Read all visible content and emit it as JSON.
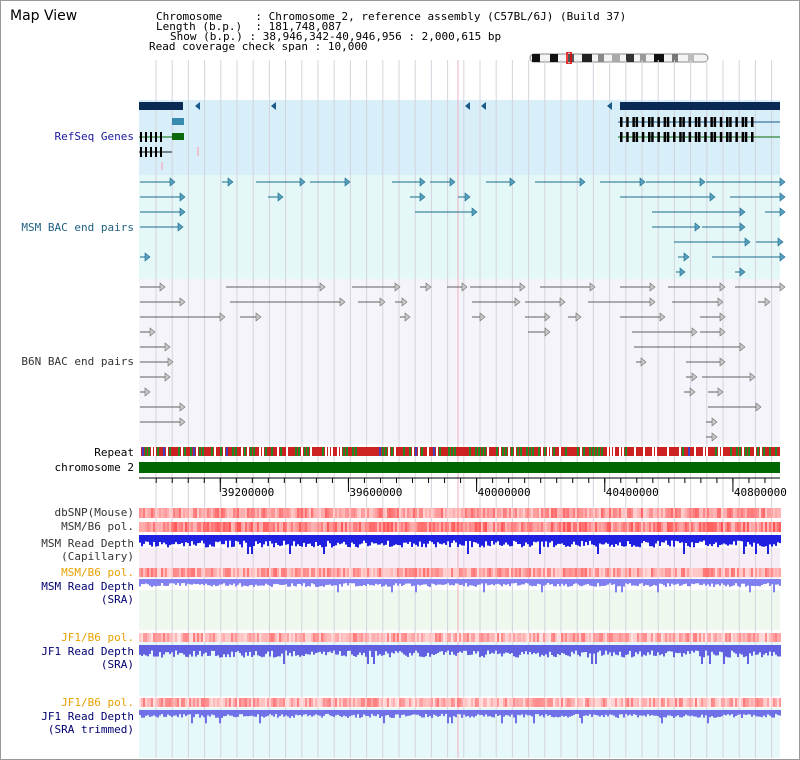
{
  "window": {
    "title": "Map View"
  },
  "info": {
    "chromosome_key": "Chromosome",
    "chromosome_value": ": Chromosome 2, reference assembly (C57BL/6J) (Build 37)",
    "length_key": "Length (b.p.)",
    "length_value": ": 181,748,087",
    "show_key": "Show (b.p.)",
    "show_value": ": 38,946,342-40,946,956 : 2,000,615 bp",
    "coverage_key": "Read coverage check span",
    "coverage_value": ": 10,000"
  },
  "tracks": {
    "refseq": "RefSeq Genes",
    "msm_bac": "MSM BAC end pairs",
    "b6n_bac": "B6N BAC end pairs",
    "repeat": "Repeat",
    "chromosome": "chromosome 2",
    "dbsnp": "dbSNP(Mouse)",
    "msm_b6_pol_1": "MSM/B6 pol.",
    "msm_depth_cap_1": "MSM Read Depth",
    "msm_depth_cap_2": "(Capillary)",
    "msm_b6_pol_2": "MSM/B6 pol.",
    "msm_depth_sra_1": "MSM Read Depth",
    "msm_depth_sra_2": "(SRA)",
    "jf1_pol_1": "JF1/B6 pol.",
    "jf1_depth_1a": "JF1 Read Depth",
    "jf1_depth_1b": "(SRA)",
    "jf1_pol_2": "JF1/B6 pol.",
    "jf1_depth_2a": "JF1 Read Depth",
    "jf1_depth_2b": "(SRA trimmed)"
  },
  "axis": {
    "start_bp": 38946342,
    "end_bp": 40946956,
    "ticks": [
      {
        "bp": 39200000,
        "label": "39200000"
      },
      {
        "bp": 39600000,
        "label": "39600000"
      },
      {
        "bp": 40000000,
        "label": "40000000"
      },
      {
        "bp": 40400000,
        "label": "40400000"
      },
      {
        "bp": 40800000,
        "label": "40800000"
      }
    ]
  },
  "colors": {
    "refseq_bg": "#d8eef8",
    "msm_bg": "#e4f8f8",
    "b6n_bg": "#f4f4fa",
    "gene_navy": "#0a2a55",
    "gene_green": "#0a6a0a",
    "msm_line": "#1a6a8a",
    "b6n_line": "#606060",
    "chromosome_green": "#006600",
    "repeat_red": "#cc2222",
    "repeat_green": "#228822",
    "depth_blue": "#2020e0",
    "depth_light": "#8080f0",
    "pol_red": "#f04040"
  }
}
